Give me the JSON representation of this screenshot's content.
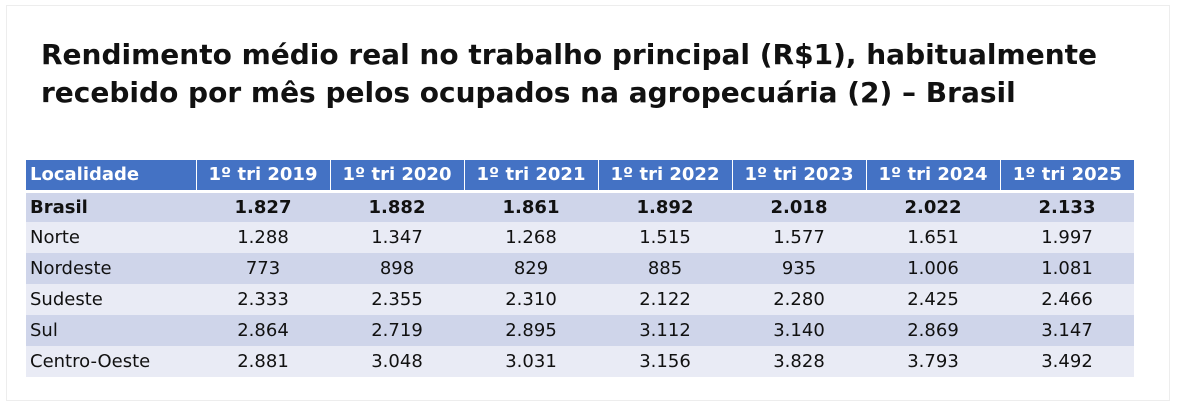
{
  "title": {
    "line1": "Rendimento médio real no trabalho principal (R$1), habitualmente",
    "line2": "recebido por mês pelos ocupados na agropecuária (2) – Brasil"
  },
  "colors": {
    "header_bg": "#4472c4",
    "row_dark": "#cfd5ea",
    "row_light": "#e9ebf5"
  },
  "chart_data": {
    "type": "table",
    "title": "Rendimento médio real no trabalho principal (R$1), habitualmente recebido por mês pelos ocupados na agropecuária (2) – Brasil",
    "columns": [
      "Localidade",
      "1º tri 2019",
      "1º tri 2020",
      "1º tri 2021",
      "1º tri 2022",
      "1º tri 2023",
      "1º tri 2024",
      "1º tri 2025"
    ],
    "rows": [
      {
        "name": "Brasil",
        "bold": true,
        "values": [
          "1.827",
          "1.882",
          "1.861",
          "1.892",
          "2.018",
          "2.022",
          "2.133"
        ]
      },
      {
        "name": "Norte",
        "values": [
          "1.288",
          "1.347",
          "1.268",
          "1.515",
          "1.577",
          "1.651",
          "1.997"
        ]
      },
      {
        "name": "Nordeste",
        "values": [
          "773",
          "898",
          "829",
          "885",
          "935",
          "1.006",
          "1.081"
        ]
      },
      {
        "name": "Sudeste",
        "values": [
          "2.333",
          "2.355",
          "2.310",
          "2.122",
          "2.280",
          "2.425",
          "2.466"
        ]
      },
      {
        "name": "Sul",
        "values": [
          "2.864",
          "2.719",
          "2.895",
          "3.112",
          "3.140",
          "2.869",
          "3.147"
        ]
      },
      {
        "name": "Centro-Oeste",
        "values": [
          "2.881",
          "3.048",
          "3.031",
          "3.156",
          "3.828",
          "3.793",
          "3.492"
        ]
      }
    ]
  }
}
